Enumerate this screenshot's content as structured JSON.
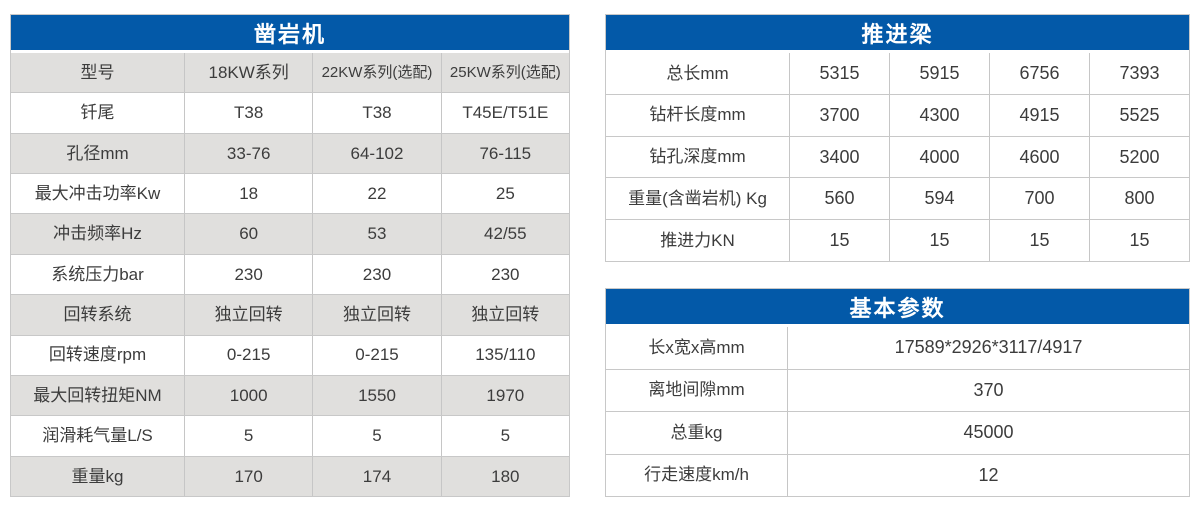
{
  "colors": {
    "header_bg": "#0359a8",
    "header_text": "#ffffff",
    "row_alt_bg": "#e0dfdd",
    "row_bg": "#ffffff",
    "border": "#c8c8c8",
    "text": "#3c3c3c"
  },
  "tables": {
    "rock_drill": {
      "title": "凿岩机",
      "rows": [
        {
          "label": "型号",
          "header": true,
          "values": [
            "18KW系列",
            "22KW系列(选配)",
            "25KW系列(选配)"
          ]
        },
        {
          "label": "钎尾",
          "values": [
            "T38",
            "T38",
            "T45E/T51E"
          ]
        },
        {
          "label": "孔径mm",
          "values": [
            "33-76",
            "64-102",
            "76-115"
          ]
        },
        {
          "label": "最大冲击功率Kw",
          "values": [
            "18",
            "22",
            "25"
          ]
        },
        {
          "label": "冲击频率Hz",
          "values": [
            "60",
            "53",
            "42/55"
          ]
        },
        {
          "label": "系统压力bar",
          "values": [
            "230",
            "230",
            "230"
          ]
        },
        {
          "label": "回转系统",
          "values": [
            "独立回转",
            "独立回转",
            "独立回转"
          ]
        },
        {
          "label": "回转速度rpm",
          "values": [
            "0-215",
            "0-215",
            "135/110"
          ]
        },
        {
          "label": "最大回转扭矩NM",
          "values": [
            "1000",
            "1550",
            "1970"
          ]
        },
        {
          "label": "润滑耗气量L/S",
          "values": [
            "5",
            "5",
            "5"
          ]
        },
        {
          "label": "重量kg",
          "values": [
            "170",
            "174",
            "180"
          ]
        }
      ]
    },
    "feed_beam": {
      "title": "推进梁",
      "rows": [
        {
          "label": "总长mm",
          "values": [
            "5315",
            "5915",
            "6756",
            "7393"
          ]
        },
        {
          "label": "钻杆长度mm",
          "values": [
            "3700",
            "4300",
            "4915",
            "5525"
          ]
        },
        {
          "label": "钻孔深度mm",
          "values": [
            "3400",
            "4000",
            "4600",
            "5200"
          ]
        },
        {
          "label": "重量(含凿岩机) Kg",
          "values": [
            "560",
            "594",
            "700",
            "800"
          ]
        },
        {
          "label": "推进力KN",
          "values": [
            "15",
            "15",
            "15",
            "15"
          ]
        }
      ]
    },
    "basic_params": {
      "title": "基本参数",
      "rows": [
        {
          "label": "长x宽x高mm",
          "values": [
            "17589*2926*3117/4917"
          ]
        },
        {
          "label": "离地间隙mm",
          "values": [
            "370"
          ]
        },
        {
          "label": "总重kg",
          "values": [
            "45000"
          ]
        },
        {
          "label": "行走速度km/h",
          "values": [
            "12"
          ]
        }
      ]
    }
  }
}
